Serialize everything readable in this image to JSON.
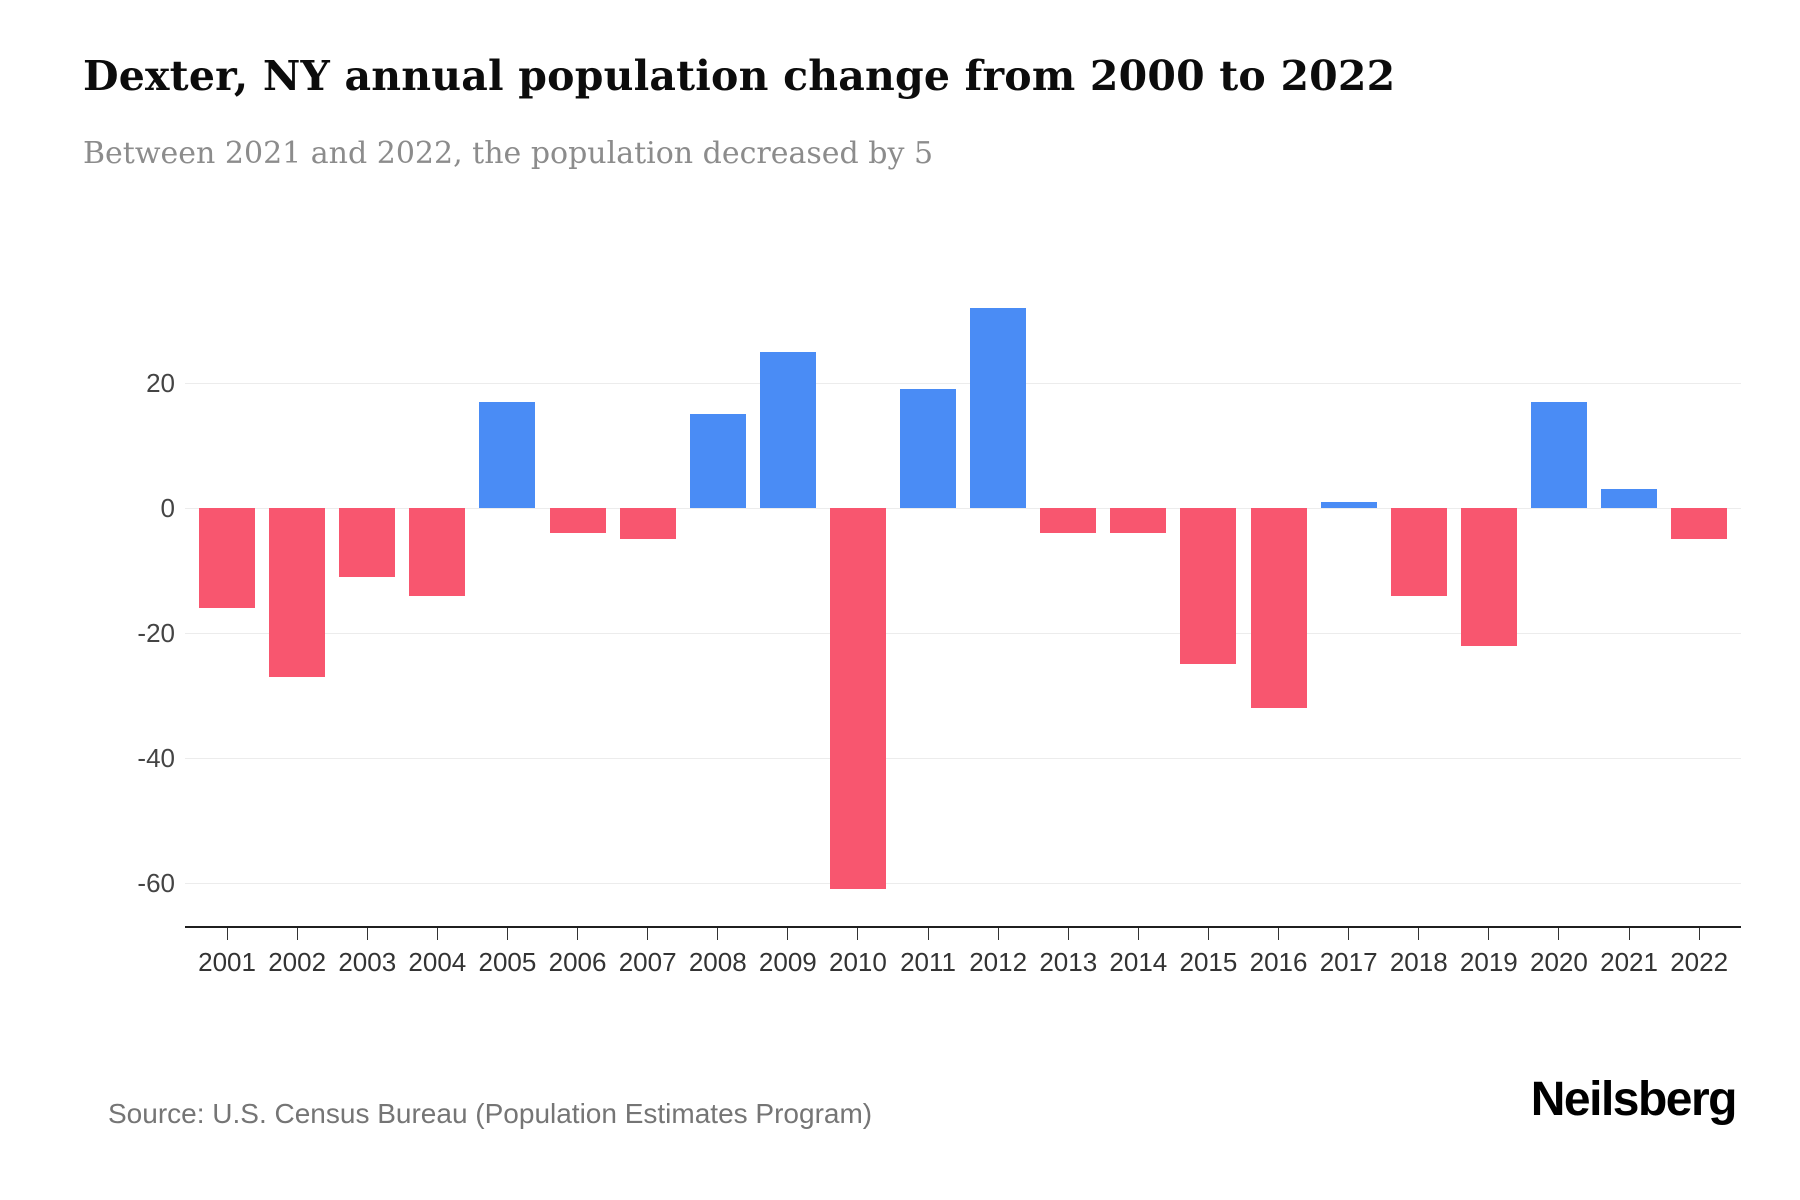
{
  "header": {
    "title": "Dexter, NY annual population change from 2000 to 2022",
    "subtitle": "Between 2021 and 2022, the population decreased by 5"
  },
  "chart_data": {
    "type": "bar",
    "title": "Dexter, NY annual population change from 2000 to 2022",
    "xlabel": "",
    "ylabel": "",
    "categories": [
      "2001",
      "2002",
      "2003",
      "2004",
      "2005",
      "2006",
      "2007",
      "2008",
      "2009",
      "2010",
      "2011",
      "2012",
      "2013",
      "2014",
      "2015",
      "2016",
      "2017",
      "2018",
      "2019",
      "2020",
      "2021",
      "2022"
    ],
    "values": [
      -16,
      -27,
      -11,
      -14,
      17,
      -4,
      -5,
      15,
      25,
      -61,
      19,
      32,
      -4,
      -4,
      -25,
      -32,
      1,
      -14,
      -22,
      17,
      3,
      -5
    ],
    "ylim": [
      -67,
      40
    ],
    "yticks": [
      {
        "value": 20,
        "label": "20"
      },
      {
        "value": 0,
        "label": "0"
      },
      {
        "value": -20,
        "label": "-20"
      },
      {
        "value": -40,
        "label": "-40"
      },
      {
        "value": -60,
        "label": "-60"
      }
    ],
    "grid": true,
    "legend": "none",
    "colors": {
      "positive": "#4a8cf5",
      "negative": "#f8566f"
    }
  },
  "footer": {
    "source": "Source: U.S. Census Bureau (Population Estimates Program)",
    "brand": "Neilsberg"
  }
}
